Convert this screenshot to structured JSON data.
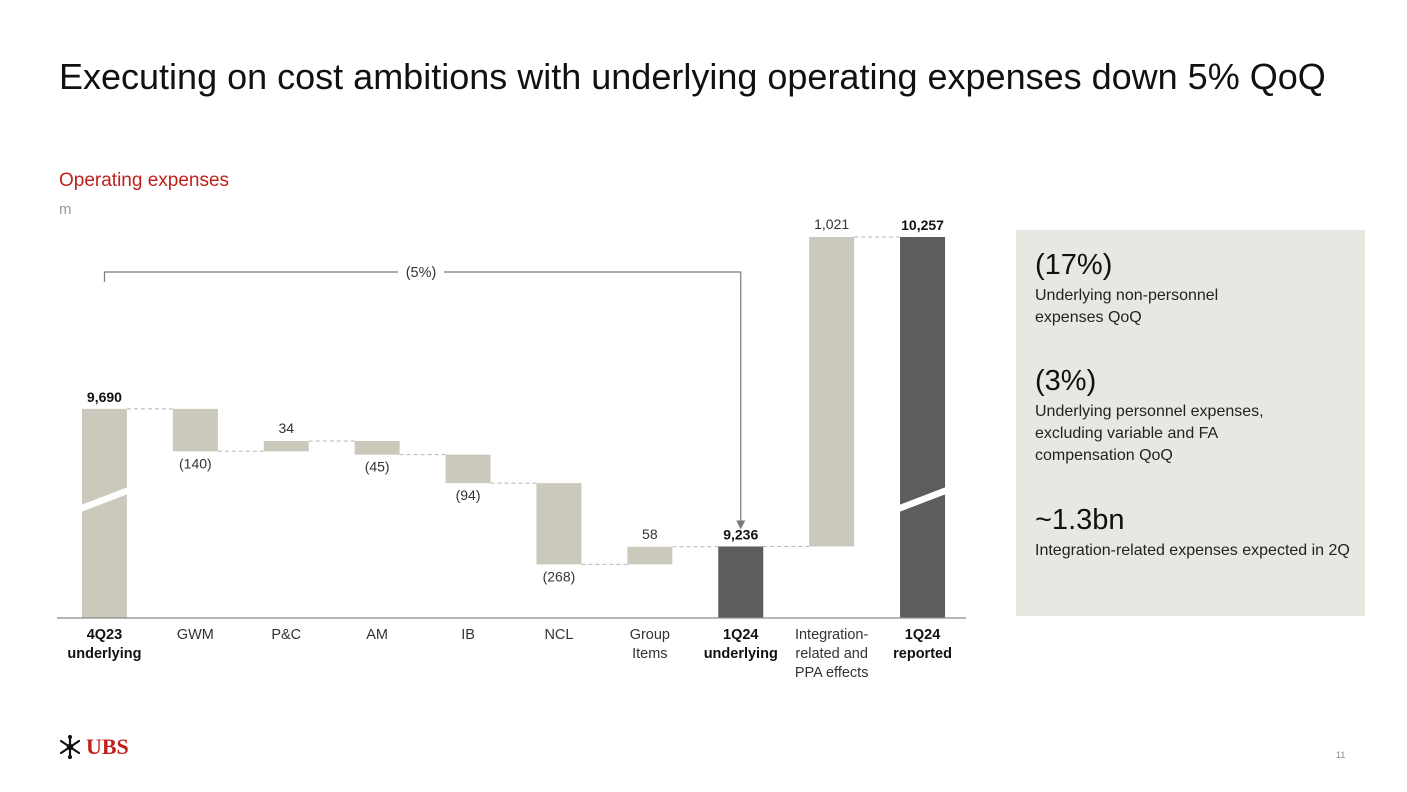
{
  "title": "Executing on cost ambitions with underlying operating expenses down 5% QoQ",
  "subtitle": "Operating expenses",
  "unit": "m",
  "colors": {
    "light": "#cbc8bc",
    "dark": "#5c5e5c",
    "accent": "#c0201b",
    "panel": "#e8e8e3"
  },
  "chart_data": {
    "type": "bar",
    "subtype": "waterfall",
    "categories": [
      "4Q23 underlying",
      "GWM",
      "P&C",
      "AM",
      "IB",
      "NCL",
      "Group Items",
      "1Q24 underlying",
      "Integration-related and PPA effects",
      "1Q24 reported"
    ],
    "category_lines": [
      [
        "4Q23",
        "underlying"
      ],
      [
        "GWM"
      ],
      [
        "P&C"
      ],
      [
        "AM"
      ],
      [
        "IB"
      ],
      [
        "NCL"
      ],
      [
        "Group",
        "Items"
      ],
      [
        "1Q24",
        "underlying"
      ],
      [
        "Integration-",
        "related and",
        "PPA effects"
      ],
      [
        "1Q24",
        "reported"
      ]
    ],
    "bold_categories": [
      0,
      7,
      9
    ],
    "values": [
      9690,
      -140,
      34,
      -45,
      -94,
      -268,
      58,
      9236,
      1021,
      10257
    ],
    "kinds": [
      "total",
      "delta",
      "delta",
      "delta",
      "delta",
      "delta",
      "delta",
      "total",
      "delta",
      "total"
    ],
    "data_labels": [
      "9,690",
      "(140)",
      "34",
      "(45)",
      "(94)",
      "(268)",
      "58",
      "9,236",
      "1,021",
      "10,257"
    ],
    "broken_axis": true,
    "annotation": "(5%)",
    "ylim": [
      8800,
      10300
    ]
  },
  "panel": {
    "items": [
      {
        "value": "(17%)",
        "desc": "Underlying non-personnel expenses QoQ"
      },
      {
        "value": "(3%)",
        "desc": "Underlying personnel expenses, excluding variable and FA compensation QoQ"
      },
      {
        "value": "~1.3bn",
        "desc": "Integration-related expenses expected in 2Q"
      }
    ]
  },
  "logo": {
    "text": "UBS",
    "icon": "keys-icon"
  },
  "page_number": "11"
}
